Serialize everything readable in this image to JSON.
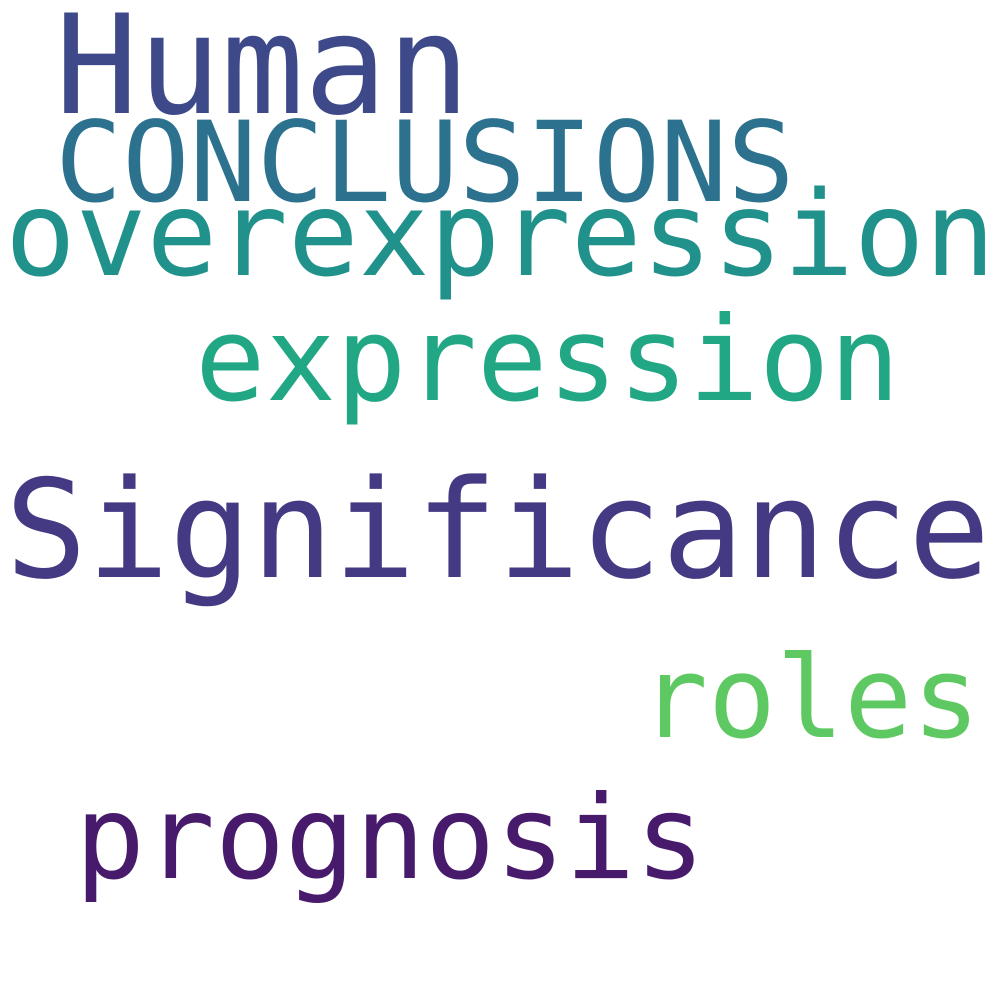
{
  "words": [
    {
      "text": "Human",
      "color": "#3e4989"
    },
    {
      "text": "CONCLUSIONS",
      "color": "#2c728e"
    },
    {
      "text": "overexpression",
      "color": "#21918c"
    },
    {
      "text": "expression",
      "color": "#22a785"
    },
    {
      "text": "Significance",
      "color": "#443983"
    },
    {
      "text": "roles",
      "color": "#5ec962"
    },
    {
      "text": "prognosis",
      "color": "#481a6c"
    }
  ]
}
